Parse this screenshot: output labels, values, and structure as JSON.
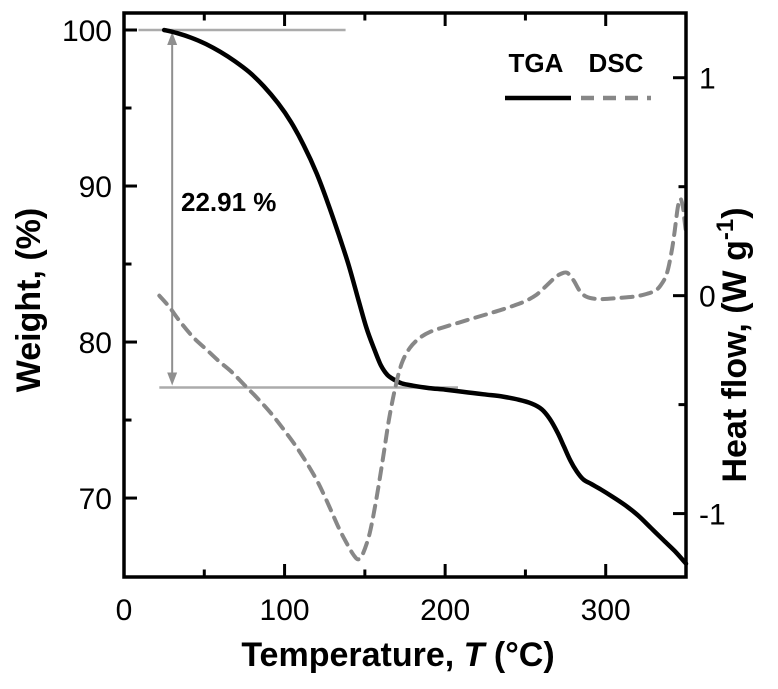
{
  "figure": {
    "background": "#ffffff"
  },
  "legend": {
    "items": [
      {
        "label": "TGA",
        "style": "solid",
        "color": "#000000"
      },
      {
        "label": "DSC",
        "style": "dashed",
        "color": "#878787"
      }
    ]
  },
  "chart_data": {
    "type": "line",
    "title": "",
    "xlabel": {
      "full": "Temperature, T (°C)",
      "prefix": "Temperature, ",
      "italic": "T",
      "suffix": " (°C)"
    },
    "ylabel_left": "Weight, (%)",
    "ylabel_right": {
      "full": "Heat flow, (W g⁻¹)",
      "prefix": "Heat flow, (W g",
      "sup": "-1",
      "suffix": ")"
    },
    "grid": false,
    "legend_position": "top-right-inside",
    "x_axis": {
      "min": 0,
      "max": 350,
      "major_ticks": [
        0,
        100,
        200,
        300
      ],
      "minor_ticks": [
        50,
        150,
        250
      ],
      "tick_labels": [
        "0",
        "100",
        "200",
        "300"
      ]
    },
    "y_left_axis": {
      "min": 64.94,
      "max": 101.09,
      "major_ticks": [
        100,
        90,
        80,
        70
      ],
      "minor_ticks": [
        95,
        85,
        75
      ],
      "tick_labels": [
        "100",
        "90",
        "80",
        "70"
      ]
    },
    "y_right_axis": {
      "min": -1.291,
      "max": 1.297,
      "major_ticks": [
        1,
        0,
        -1
      ],
      "minor_ticks": [
        0.5,
        -0.5
      ],
      "tick_labels": [
        "1",
        "0",
        "-1"
      ]
    },
    "annotation": {
      "label": "22.91 %",
      "top_line_weight": 100,
      "top_line_x_range": [
        9,
        138
      ],
      "bottom_line_weight": 77.09,
      "bottom_line_x_range": [
        22,
        208
      ],
      "arrow_temp": 30,
      "line_color": "#ababab",
      "arrow_color": "#8f8f8f"
    },
    "series": [
      {
        "name": "TGA",
        "axis": "left",
        "style": "solid",
        "color": "#000000",
        "width": 4.5,
        "points": [
          [
            25,
            100
          ],
          [
            33,
            99.8
          ],
          [
            42,
            99.5
          ],
          [
            51,
            99.1
          ],
          [
            60,
            98.6
          ],
          [
            69,
            98.0
          ],
          [
            78,
            97.3
          ],
          [
            87,
            96.4
          ],
          [
            96,
            95.3
          ],
          [
            104,
            94.1
          ],
          [
            112,
            92.6
          ],
          [
            120,
            90.8
          ],
          [
            127,
            88.9
          ],
          [
            134,
            86.8
          ],
          [
            140,
            84.9
          ],
          [
            146,
            82.7
          ],
          [
            151,
            80.9
          ],
          [
            156,
            79.5
          ],
          [
            160,
            78.5
          ],
          [
            164,
            77.9
          ],
          [
            168,
            77.6
          ],
          [
            173,
            77.35
          ],
          [
            180,
            77.2
          ],
          [
            190,
            77.05
          ],
          [
            200,
            76.95
          ],
          [
            212,
            76.8
          ],
          [
            224,
            76.65
          ],
          [
            236,
            76.5
          ],
          [
            246,
            76.3
          ],
          [
            254,
            76.05
          ],
          [
            260,
            75.7
          ],
          [
            265,
            75.1
          ],
          [
            270,
            74.2
          ],
          [
            274,
            73.3
          ],
          [
            278,
            72.4
          ],
          [
            282,
            71.7
          ],
          [
            286,
            71.2
          ],
          [
            291,
            70.9
          ],
          [
            297,
            70.55
          ],
          [
            304,
            70.1
          ],
          [
            312,
            69.55
          ],
          [
            320,
            68.9
          ],
          [
            328,
            68.1
          ],
          [
            336,
            67.3
          ],
          [
            343,
            66.6
          ],
          [
            350,
            65.8
          ]
        ]
      },
      {
        "name": "DSC",
        "axis": "right",
        "style": "dashed",
        "color": "#878787",
        "width": 4,
        "points": [
          [
            22,
            0.0
          ],
          [
            28,
            -0.05
          ],
          [
            35,
            -0.12
          ],
          [
            43,
            -0.19
          ],
          [
            51,
            -0.245
          ],
          [
            59,
            -0.3
          ],
          [
            67,
            -0.35
          ],
          [
            75,
            -0.41
          ],
          [
            83,
            -0.47
          ],
          [
            91,
            -0.535
          ],
          [
            99,
            -0.61
          ],
          [
            107,
            -0.69
          ],
          [
            114,
            -0.77
          ],
          [
            121,
            -0.86
          ],
          [
            128,
            -0.97
          ],
          [
            134,
            -1.07
          ],
          [
            139,
            -1.14
          ],
          [
            143,
            -1.19
          ],
          [
            146,
            -1.21
          ],
          [
            149,
            -1.18
          ],
          [
            153,
            -1.09
          ],
          [
            157,
            -0.94
          ],
          [
            161,
            -0.76
          ],
          [
            165,
            -0.57
          ],
          [
            169,
            -0.42
          ],
          [
            173,
            -0.31
          ],
          [
            178,
            -0.24
          ],
          [
            184,
            -0.195
          ],
          [
            191,
            -0.165
          ],
          [
            199,
            -0.145
          ],
          [
            208,
            -0.125
          ],
          [
            217,
            -0.105
          ],
          [
            226,
            -0.085
          ],
          [
            235,
            -0.065
          ],
          [
            243,
            -0.045
          ],
          [
            250,
            -0.025
          ],
          [
            257,
            0.005
          ],
          [
            263,
            0.045
          ],
          [
            268,
            0.08
          ],
          [
            272,
            0.1
          ],
          [
            276,
            0.105
          ],
          [
            280,
            0.07
          ],
          [
            284,
            0.02
          ],
          [
            288,
            -0.005
          ],
          [
            294,
            -0.015
          ],
          [
            301,
            -0.015
          ],
          [
            309,
            -0.01
          ],
          [
            317,
            -0.005
          ],
          [
            324,
            0.005
          ],
          [
            330,
            0.02
          ],
          [
            334,
            0.045
          ],
          [
            338,
            0.1
          ],
          [
            341,
            0.2
          ],
          [
            343,
            0.3
          ],
          [
            345,
            0.41
          ],
          [
            346.5,
            0.445
          ],
          [
            348,
            0.41
          ],
          [
            349,
            0.35
          ],
          [
            350,
            0.29
          ]
        ]
      }
    ]
  }
}
